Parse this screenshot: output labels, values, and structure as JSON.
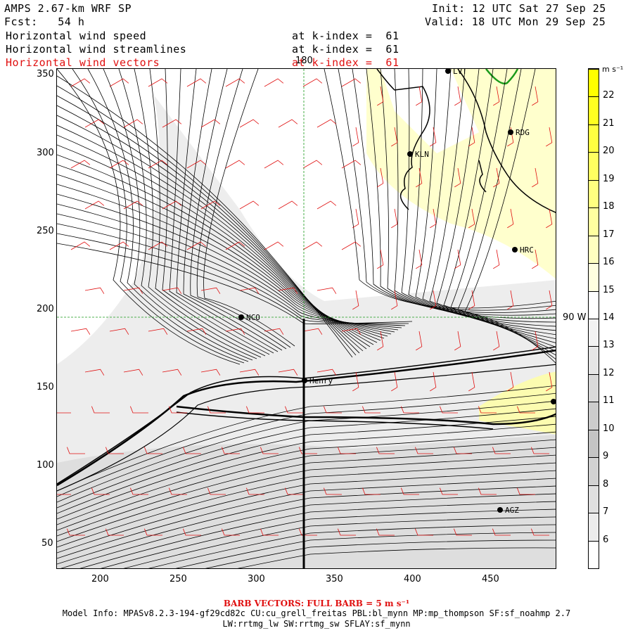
{
  "header": {
    "title": "AMPS 2.67-km WRF SP",
    "forecast": "Fcst:   54 h",
    "init": "Init: 12 UTC Sat 27 Sep 25",
    "valid": "Valid: 18 UTC Mon 29 Sep 25"
  },
  "fields": [
    {
      "name": "Horizontal wind speed",
      "level": "at k-index =  61",
      "color": "#000000"
    },
    {
      "name": "Horizontal wind streamlines",
      "level": "at k-index =  61",
      "color": "#000000"
    },
    {
      "name": "Horizontal wind vectors",
      "level": "at k-index =  61",
      "color": "#e01010"
    }
  ],
  "map": {
    "x_ticks": [
      "200",
      "250",
      "300",
      "350",
      "400",
      "450"
    ],
    "y_ticks": [
      "350",
      "300",
      "250",
      "200",
      "150",
      "100",
      "50"
    ],
    "meridian_label": "180",
    "parallel_label": "90 W",
    "stations": [
      {
        "name": "LVT"
      },
      {
        "name": "RDG"
      },
      {
        "name": "KLN"
      },
      {
        "name": "HRC"
      },
      {
        "name": "NCO"
      },
      {
        "name": "Henry"
      },
      {
        "name": "AGZ"
      },
      {
        "name": ""
      }
    ]
  },
  "colorbar": {
    "units": "m s⁻¹",
    "ticks": [
      "22",
      "21",
      "20",
      "19",
      "18",
      "17",
      "16",
      "15",
      "14",
      "13",
      "12",
      "11",
      "10",
      "9",
      "8",
      "7",
      "6"
    ],
    "colors": [
      "#ffff00",
      "#ffff20",
      "#ffff40",
      "#ffff60",
      "#ffff80",
      "#ffffa0",
      "#ffffc0",
      "#ffffe0",
      "#ffffff",
      "#f2f2f2",
      "#e6e6e6",
      "#d9d9d9",
      "#cccccc",
      "#c4c4c4",
      "#d2d2d2",
      "#e0e0e0",
      "#ececec",
      "#ffffff"
    ]
  },
  "footer": {
    "barb_note": "BARB VECTORS:  FULL BARB = 5 m s⁻¹",
    "model_info": "Model Info: MPASv8.2.3-194-gf29cd82c CU:cu_grell_freitas PBL:bl_mynn MP:mp_thompson SF:sf_noahmp 2.7",
    "model_info2": "LW:rrtmg_lw SW:rrtmg_sw SFLAY:sf_mynn"
  }
}
